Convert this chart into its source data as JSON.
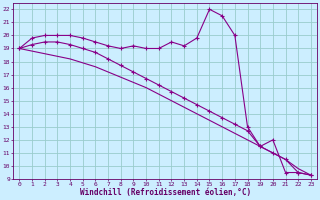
{
  "xlabel": "Windchill (Refroidissement éolien,°C)",
  "x": [
    0,
    1,
    2,
    3,
    4,
    5,
    6,
    7,
    8,
    9,
    10,
    11,
    12,
    13,
    14,
    15,
    16,
    17,
    18,
    19,
    20,
    21,
    22,
    23
  ],
  "line1": [
    19.0,
    19.8,
    20.0,
    20.0,
    20.0,
    19.8,
    19.5,
    19.2,
    19.0,
    19.2,
    19.0,
    19.0,
    19.5,
    19.2,
    19.8,
    22.0,
    21.5,
    20.0,
    13.0,
    11.5,
    12.0,
    9.5,
    9.5,
    9.3
  ],
  "line2": [
    19.0,
    19.3,
    19.5,
    19.5,
    19.3,
    19.0,
    18.7,
    18.2,
    17.7,
    17.2,
    16.7,
    16.2,
    15.7,
    15.2,
    14.7,
    14.2,
    13.7,
    13.2,
    12.7,
    11.5,
    11.0,
    10.5,
    9.5,
    9.3
  ],
  "line3": [
    19.0,
    18.8,
    18.6,
    18.4,
    18.2,
    17.9,
    17.6,
    17.2,
    16.8,
    16.4,
    16.0,
    15.5,
    15.0,
    14.5,
    14.0,
    13.5,
    13.0,
    12.5,
    12.0,
    11.5,
    11.0,
    10.5,
    9.8,
    9.3
  ],
  "color": "#880088",
  "bg_color": "#cceeff",
  "grid_color": "#99cccc",
  "ylim": [
    9,
    22.5
  ],
  "xlim": [
    -0.5,
    23.5
  ],
  "yticks": [
    9,
    10,
    11,
    12,
    13,
    14,
    15,
    16,
    17,
    18,
    19,
    20,
    21,
    22
  ],
  "xticks": [
    0,
    1,
    2,
    3,
    4,
    5,
    6,
    7,
    8,
    9,
    10,
    11,
    12,
    13,
    14,
    15,
    16,
    17,
    18,
    19,
    20,
    21,
    22,
    23
  ]
}
